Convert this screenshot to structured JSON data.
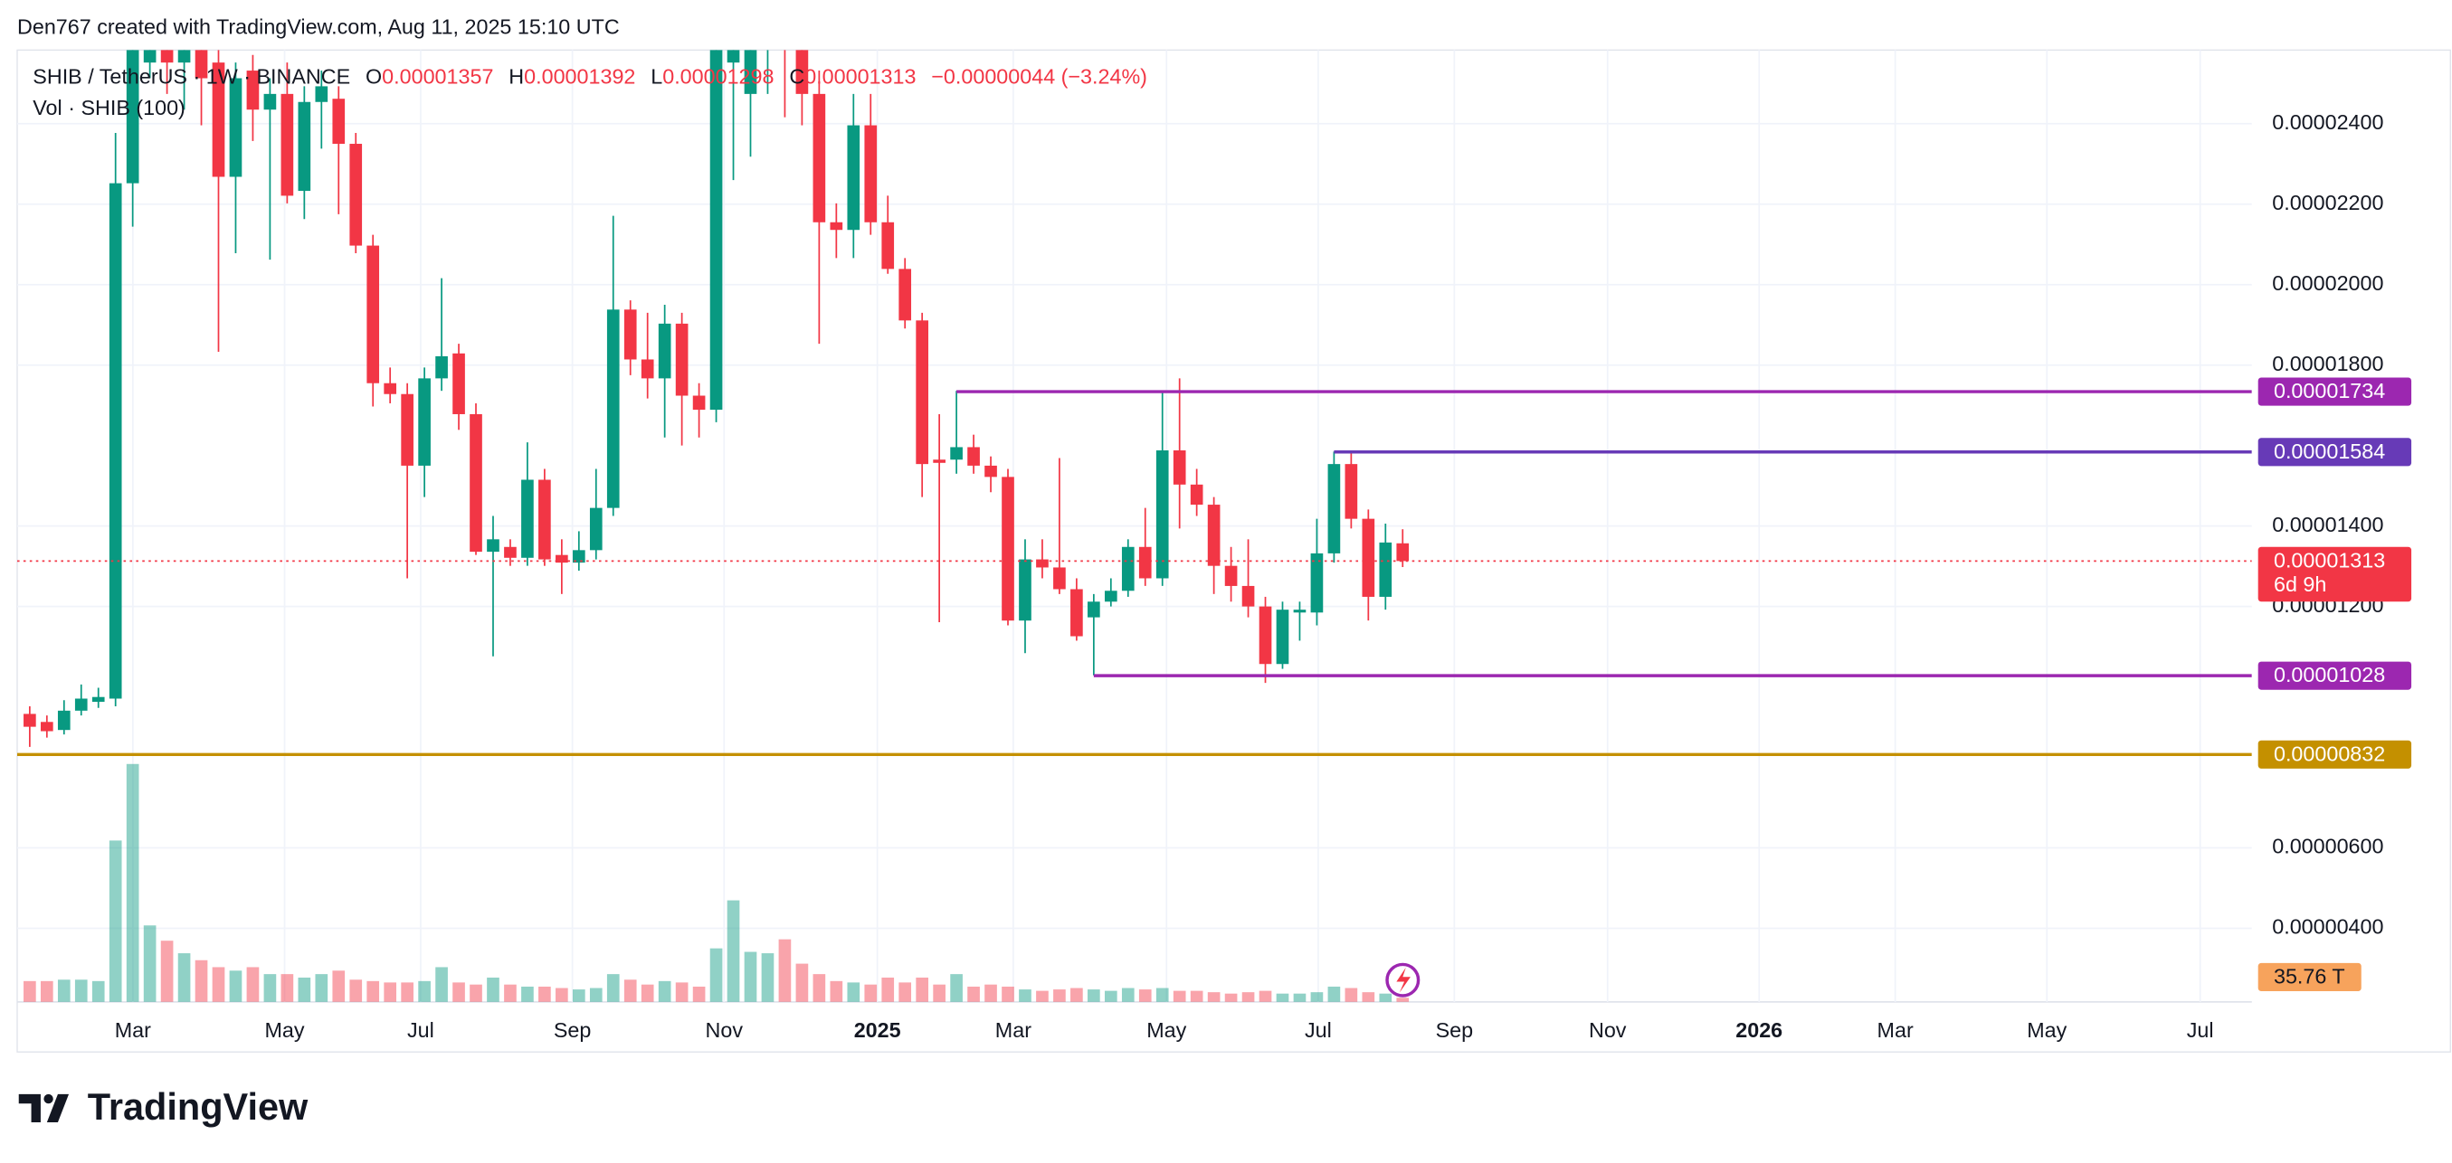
{
  "header": {
    "credit": "Den767 created with TradingView.com, Aug 11, 2025 15:10 UTC",
    "brand": "TradingView"
  },
  "chart_data": {
    "type": "candlestick",
    "symbol": "SHIB / TetherUS · 1W · BINANCE",
    "legend": [
      {
        "key": "O",
        "value": "0.00001357"
      },
      {
        "key": "H",
        "value": "0.00001392"
      },
      {
        "key": "L",
        "value": "0.00001298"
      },
      {
        "key": "C",
        "value": "0.00001313"
      }
    ],
    "change": "−0.00000044 (−3.24%)",
    "volume_legend": "Vol · SHIB (100)",
    "up_color": "#089981",
    "down_color": "#f23645",
    "grid": true,
    "x": [
      0,
      1,
      2,
      3,
      4,
      5,
      6,
      7,
      8,
      9,
      10,
      11,
      12,
      13,
      14,
      15,
      16,
      17,
      18,
      19,
      20,
      21,
      22,
      23,
      24,
      25,
      26,
      27,
      28,
      29,
      30,
      31,
      32,
      33,
      34,
      35,
      36,
      37,
      38,
      39,
      40,
      41,
      42,
      43,
      44,
      45,
      46,
      47,
      48,
      49,
      50,
      51,
      52,
      53,
      54,
      55,
      56,
      57,
      58,
      59,
      60,
      61,
      62,
      63,
      64,
      65,
      66,
      67,
      68,
      69,
      70,
      71,
      72,
      73,
      74,
      75,
      76,
      77,
      78,
      79,
      80
    ],
    "open": [
      9.33e-06,
      9.13e-06,
      8.93e-06,
      9.41e-06,
      9.63e-06,
      9.71e-06,
      2.252e-05,
      2.552e-05,
      2.649e-05,
      2.552e-05,
      2.61e-05,
      2.552e-05,
      2.268e-05,
      2.532e-05,
      2.435e-05,
      2.474e-05,
      2.233e-05,
      2.454e-05,
      2.462e-05,
      2.35e-05,
      2.097e-05,
      1.755e-05,
      1.728e-05,
      1.55e-05,
      1.767e-05,
      1.829e-05,
      1.678e-05,
      1.336e-05,
      1.348e-05,
      1.321e-05,
      1.515e-05,
      1.328e-05,
      1.309e-05,
      1.34e-05,
      1.445e-05,
      1.938e-05,
      1.814e-05,
      1.767e-05,
      1.903e-05,
      1.724e-05,
      1.689e-05,
      2.552e-05,
      2.474e-05,
      2.59e-05,
      2.61e-05,
      2.59e-05,
      2.474e-05,
      2.155e-05,
      2.136e-05,
      2.396e-05,
      2.155e-05,
      2.039e-05,
      1.911e-05,
      1.565e-05,
      1.565e-05,
      1.596e-05,
      1.55e-05,
      1.522e-05,
      1.165e-05,
      1.317e-05,
      1.297e-05,
      1.243e-05,
      1.173e-05,
      1.212e-05,
      1.239e-05,
      1.348e-05,
      1.27e-05,
      1.588e-05,
      1.503e-05,
      1.453e-05,
      1.301e-05,
      1.251e-05,
      1.2e-05,
      1.057e-05,
      1.185e-05,
      1.185e-05,
      1.332e-05,
      1.554e-05,
      1.418e-05,
      1.224e-05,
      1.357e-05
    ],
    "high": [
      9.52e-06,
      9.29e-06,
      9.67e-06,
      1.006e-05,
      9.98e-06,
      2.377e-05,
      2.668e-05,
      2.687e-05,
      2.687e-05,
      2.668e-05,
      2.649e-05,
      2.59e-05,
      2.552e-05,
      2.571e-05,
      2.513e-05,
      2.552e-05,
      2.493e-05,
      2.532e-05,
      2.493e-05,
      2.377e-05,
      2.124e-05,
      1.794e-05,
      1.755e-05,
      1.794e-05,
      2.016e-05,
      1.853e-05,
      1.705e-05,
      1.425e-05,
      1.367e-05,
      1.608e-05,
      1.542e-05,
      1.367e-05,
      1.387e-05,
      1.542e-05,
      2.171e-05,
      1.961e-05,
      1.93e-05,
      1.95e-05,
      1.93e-05,
      1.755e-05,
      2.668e-05,
      2.668e-05,
      2.629e-05,
      2.649e-05,
      2.649e-05,
      2.629e-05,
      2.532e-05,
      2.202e-05,
      2.474e-05,
      2.474e-05,
      2.221e-05,
      2.066e-05,
      1.93e-05,
      1.678e-05,
      1.736e-05,
      1.627e-05,
      1.573e-05,
      1.542e-05,
      1.367e-05,
      1.367e-05,
      1.569e-05,
      1.27e-05,
      1.231e-05,
      1.27e-05,
      1.367e-05,
      1.445e-05,
      1.736e-05,
      1.767e-05,
      1.542e-05,
      1.472e-05,
      1.348e-05,
      1.367e-05,
      1.224e-05,
      1.212e-05,
      1.212e-05,
      1.418e-05,
      1.585e-05,
      1.588e-05,
      1.441e-05,
      1.406e-05,
      1.392e-05
    ],
    "low": [
      8.51e-06,
      8.74e-06,
      8.82e-06,
      9.29e-06,
      9.48e-06,
      9.52e-06,
      2.144e-05,
      2.513e-05,
      2.474e-05,
      2.435e-05,
      2.396e-05,
      1.833e-05,
      2.078e-05,
      2.357e-05,
      2.062e-05,
      2.202e-05,
      2.163e-05,
      2.338e-05,
      2.175e-05,
      2.078e-05,
      1.697e-05,
      1.705e-05,
      1.27e-05,
      1.472e-05,
      1.736e-05,
      1.639e-05,
      1.328e-05,
      1.076e-05,
      1.301e-05,
      1.301e-05,
      1.301e-05,
      1.231e-05,
      1.289e-05,
      1.317e-05,
      1.425e-05,
      1.775e-05,
      1.717e-05,
      1.62e-05,
      1.6e-05,
      1.62e-05,
      1.658e-05,
      2.26e-05,
      2.318e-05,
      2.474e-05,
      2.416e-05,
      2.396e-05,
      1.853e-05,
      2.066e-05,
      2.066e-05,
      2.124e-05,
      2.027e-05,
      1.891e-05,
      1.472e-05,
      1.161e-05,
      1.53e-05,
      1.53e-05,
      1.484e-05,
      1.153e-05,
      1.084e-05,
      1.27e-05,
      1.231e-05,
      1.115e-05,
      1.029e-05,
      1.2e-05,
      1.224e-05,
      1.251e-05,
      1.251e-05,
      1.394e-05,
      1.425e-05,
      1.231e-05,
      1.212e-05,
      1.173e-05,
      1.01e-05,
      1.045e-05,
      1.115e-05,
      1.153e-05,
      1.309e-05,
      1.394e-05,
      1.165e-05,
      1.192e-05,
      1.298e-05
    ],
    "close": [
      9.01e-06,
      8.9e-06,
      9.41e-06,
      9.71e-06,
      9.75e-06,
      2.252e-05,
      2.629e-05,
      2.649e-05,
      2.552e-05,
      2.629e-05,
      2.513e-05,
      2.268e-05,
      2.513e-05,
      2.435e-05,
      2.474e-05,
      2.221e-05,
      2.454e-05,
      2.493e-05,
      2.35e-05,
      2.097e-05,
      1.755e-05,
      1.728e-05,
      1.55e-05,
      1.767e-05,
      1.822e-05,
      1.678e-05,
      1.336e-05,
      1.367e-05,
      1.321e-05,
      1.515e-05,
      1.317e-05,
      1.309e-05,
      1.34e-05,
      1.445e-05,
      1.938e-05,
      1.814e-05,
      1.767e-05,
      1.903e-05,
      1.724e-05,
      1.689e-05,
      2.629e-05,
      2.629e-05,
      2.59e-05,
      2.61e-05,
      2.59e-05,
      2.474e-05,
      2.155e-05,
      2.136e-05,
      2.396e-05,
      2.155e-05,
      2.039e-05,
      1.911e-05,
      1.554e-05,
      1.557e-05,
      1.596e-05,
      1.55e-05,
      1.522e-05,
      1.165e-05,
      1.317e-05,
      1.297e-05,
      1.243e-05,
      1.126e-05,
      1.212e-05,
      1.239e-05,
      1.348e-05,
      1.27e-05,
      1.588e-05,
      1.503e-05,
      1.453e-05,
      1.301e-05,
      1.251e-05,
      1.2e-05,
      1.057e-05,
      1.192e-05,
      1.192e-05,
      1.332e-05,
      1.554e-05,
      1.418e-05,
      1.224e-05,
      1.359e-05,
      1.313e-05
    ],
    "volume": [
      30,
      30,
      32,
      32,
      30,
      232,
      342,
      110,
      88,
      70,
      60,
      50,
      45,
      50,
      40,
      40,
      35,
      40,
      45,
      32,
      30,
      28,
      28,
      30,
      50,
      28,
      25,
      35,
      25,
      22,
      22,
      20,
      18,
      20,
      40,
      32,
      25,
      30,
      28,
      22,
      77,
      146,
      72,
      70,
      90,
      55,
      40,
      30,
      28,
      25,
      35,
      28,
      35,
      25,
      40,
      22,
      25,
      22,
      18,
      16,
      18,
      20,
      18,
      16,
      20,
      18,
      20,
      16,
      16,
      14,
      12,
      14,
      16,
      12,
      12,
      14,
      22,
      20,
      14,
      12,
      6
    ],
    "vol_ylim": [
      0,
      1368
    ],
    "xlim": [
      -0.73,
      129.48
    ],
    "xticks": [
      {
        "value": 6.01,
        "label": "Mar"
      },
      {
        "value": 14.85,
        "label": "May"
      },
      {
        "value": 22.78,
        "label": "Jul"
      },
      {
        "value": 31.62,
        "label": "Sep"
      },
      {
        "value": 40.46,
        "label": "Nov"
      },
      {
        "value": 49.39,
        "label": "2025"
      },
      {
        "value": 57.31,
        "label": "Mar"
      },
      {
        "value": 66.24,
        "label": "May"
      },
      {
        "value": 75.08,
        "label": "Jul"
      },
      {
        "value": 83.01,
        "label": "Sep"
      },
      {
        "value": 91.94,
        "label": "Nov"
      },
      {
        "value": 100.77,
        "label": "2026"
      },
      {
        "value": 108.7,
        "label": "Mar"
      },
      {
        "value": 117.54,
        "label": "May"
      },
      {
        "value": 126.47,
        "label": "Jul"
      }
    ],
    "ylim": [
      2.17e-06,
      2.583e-05
    ],
    "yticks": [
      {
        "value": 2.4e-05,
        "label": "0.00002400"
      },
      {
        "value": 2.2e-05,
        "label": "0.00002200"
      },
      {
        "value": 2e-05,
        "label": "0.00002000"
      },
      {
        "value": 1.8e-05,
        "label": "0.00001800"
      },
      {
        "value": 1.4e-05,
        "label": "0.00001400"
      },
      {
        "value": 1.2e-05,
        "label": "0.00001200"
      },
      {
        "value": 6e-06,
        "label": "0.00000600"
      },
      {
        "value": 4e-06,
        "label": "0.00000400"
      }
    ],
    "last_price": {
      "value": 1.313e-05,
      "label": "0.00001313",
      "countdown": "6d 9h",
      "color": "#f23645"
    },
    "levels": [
      {
        "value": 1.734e-05,
        "label": "0.00001734",
        "start": 54,
        "color": "#9c27b0"
      },
      {
        "value": 1.584e-05,
        "label": "0.00001584",
        "start": 76,
        "color": "#673ab7"
      },
      {
        "value": 1.028e-05,
        "label": "0.00001028",
        "start": 62,
        "color": "#9c27b0"
      },
      {
        "value": 8.32e-06,
        "label": "0.00000832",
        "start": -0.73,
        "color": "#c49000"
      }
    ],
    "volume_ma": {
      "value": 35.76,
      "label": "35.76 T",
      "color": "#f7a35c"
    }
  }
}
